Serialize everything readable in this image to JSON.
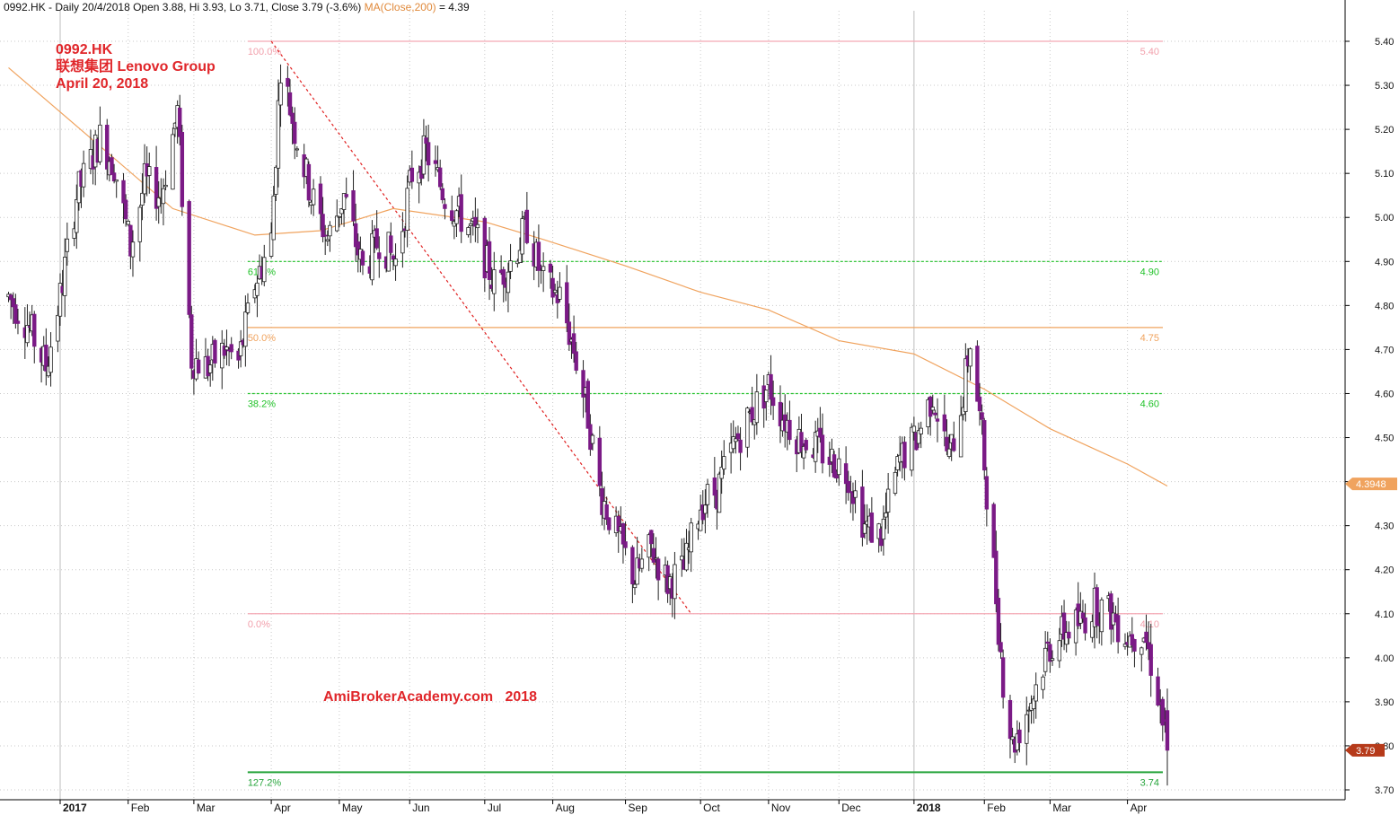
{
  "header": {
    "ohlc_text": "0992.HK - Daily 20/4/2018 Open 3.88, Hi 3.93, Lo 3.71, Close 3.79 (-3.6%)",
    "ma_label": "MA(Close,200)",
    "ma_value": " = 4.39"
  },
  "annotation": {
    "symbol": "0992.HK",
    "name": "联想集团 Lenovo Group",
    "date": "April 20, 2018"
  },
  "watermark": "AmiBrokerAcademy.com   2018",
  "colors": {
    "candle_up": "#ffffff",
    "candle_down": "#7b1a86",
    "wick": "#222222",
    "ma_line": "#f0a35e",
    "fib_pink": "#f4a9b4",
    "fib_green": "#22c22a",
    "fib_orange": "#f0a35e",
    "trend_line": "#e02020",
    "grid": "#c9c9c9",
    "ma_badge": "#f0a35e",
    "close_badge": "#b63a1a"
  },
  "chart_data": {
    "type": "candlestick",
    "symbol": "0992.HK",
    "y_range": [
      3.68,
      5.42
    ],
    "y_ticks": [
      "3.70",
      "3.80",
      "3.90",
      "4.00",
      "4.10",
      "4.20",
      "4.30",
      "4.40",
      "4.50",
      "4.60",
      "4.70",
      "4.80",
      "4.90",
      "5.00",
      "5.10",
      "5.20",
      "5.30",
      "5.40"
    ],
    "x_labels": [
      {
        "label": "2017",
        "date": "2017-01-03",
        "bold": true
      },
      {
        "label": "Feb",
        "date": "2017-02-01",
        "bold": false
      },
      {
        "label": "Mar",
        "date": "2017-03-01",
        "bold": false
      },
      {
        "label": "Apr",
        "date": "2017-04-03",
        "bold": false
      },
      {
        "label": "May",
        "date": "2017-05-02",
        "bold": false
      },
      {
        "label": "Jun",
        "date": "2017-06-01",
        "bold": false
      },
      {
        "label": "Jul",
        "date": "2017-07-03",
        "bold": false
      },
      {
        "label": "Aug",
        "date": "2017-08-01",
        "bold": false
      },
      {
        "label": "Sep",
        "date": "2017-09-01",
        "bold": false
      },
      {
        "label": "Oct",
        "date": "2017-10-03",
        "bold": false
      },
      {
        "label": "Nov",
        "date": "2017-11-01",
        "bold": false
      },
      {
        "label": "Dec",
        "date": "2017-12-01",
        "bold": false
      },
      {
        "label": "2018",
        "date": "2018-01-02",
        "bold": true
      },
      {
        "label": "Feb",
        "date": "2018-02-01",
        "bold": false
      },
      {
        "label": "Mar",
        "date": "2018-03-01",
        "bold": false
      },
      {
        "label": "Apr",
        "date": "2018-04-03",
        "bold": false
      }
    ],
    "price_path": [
      {
        "date": "2016-12-12",
        "price": 4.82
      },
      {
        "date": "2016-12-20",
        "price": 4.76
      },
      {
        "date": "2016-12-28",
        "price": 4.66
      },
      {
        "date": "2017-01-03",
        "price": 4.82
      },
      {
        "date": "2017-01-10",
        "price": 5.05
      },
      {
        "date": "2017-01-20",
        "price": 5.18
      },
      {
        "date": "2017-01-26",
        "price": 5.12
      },
      {
        "date": "2017-02-02",
        "price": 4.93
      },
      {
        "date": "2017-02-08",
        "price": 5.08
      },
      {
        "date": "2017-02-15",
        "price": 5.05
      },
      {
        "date": "2017-02-22",
        "price": 5.24
      },
      {
        "date": "2017-02-28",
        "price": 4.68
      },
      {
        "date": "2017-03-07",
        "price": 4.66
      },
      {
        "date": "2017-03-14",
        "price": 4.7
      },
      {
        "date": "2017-03-20",
        "price": 4.67
      },
      {
        "date": "2017-03-27",
        "price": 4.85
      },
      {
        "date": "2017-04-03",
        "price": 4.95
      },
      {
        "date": "2017-04-07",
        "price": 5.35
      },
      {
        "date": "2017-04-13",
        "price": 5.2
      },
      {
        "date": "2017-04-20",
        "price": 5.05
      },
      {
        "date": "2017-04-27",
        "price": 4.95
      },
      {
        "date": "2017-05-04",
        "price": 5.05
      },
      {
        "date": "2017-05-12",
        "price": 4.88
      },
      {
        "date": "2017-05-19",
        "price": 4.95
      },
      {
        "date": "2017-05-26",
        "price": 4.9
      },
      {
        "date": "2017-06-02",
        "price": 5.1
      },
      {
        "date": "2017-06-08",
        "price": 5.15
      },
      {
        "date": "2017-06-16",
        "price": 5.05
      },
      {
        "date": "2017-06-23",
        "price": 5.0
      },
      {
        "date": "2017-06-30",
        "price": 4.95
      },
      {
        "date": "2017-07-07",
        "price": 4.85
      },
      {
        "date": "2017-07-14",
        "price": 4.9
      },
      {
        "date": "2017-07-21",
        "price": 4.98
      },
      {
        "date": "2017-07-28",
        "price": 4.85
      },
      {
        "date": "2017-08-04",
        "price": 4.82
      },
      {
        "date": "2017-08-10",
        "price": 4.7
      },
      {
        "date": "2017-08-16",
        "price": 4.55
      },
      {
        "date": "2017-08-21",
        "price": 4.38
      },
      {
        "date": "2017-08-28",
        "price": 4.28
      },
      {
        "date": "2017-09-05",
        "price": 4.18
      },
      {
        "date": "2017-09-12",
        "price": 4.25
      },
      {
        "date": "2017-09-19",
        "price": 4.17
      },
      {
        "date": "2017-09-26",
        "price": 4.2
      },
      {
        "date": "2017-10-03",
        "price": 4.35
      },
      {
        "date": "2017-10-10",
        "price": 4.38
      },
      {
        "date": "2017-10-17",
        "price": 4.48
      },
      {
        "date": "2017-10-24",
        "price": 4.55
      },
      {
        "date": "2017-11-01",
        "price": 4.62
      },
      {
        "date": "2017-11-07",
        "price": 4.55
      },
      {
        "date": "2017-11-14",
        "price": 4.5
      },
      {
        "date": "2017-11-21",
        "price": 4.48
      },
      {
        "date": "2017-11-28",
        "price": 4.45
      },
      {
        "date": "2017-12-05",
        "price": 4.42
      },
      {
        "date": "2017-12-12",
        "price": 4.3
      },
      {
        "date": "2017-12-19",
        "price": 4.28
      },
      {
        "date": "2017-12-27",
        "price": 4.45
      },
      {
        "date": "2018-01-03",
        "price": 4.5
      },
      {
        "date": "2018-01-10",
        "price": 4.6
      },
      {
        "date": "2018-01-17",
        "price": 4.45
      },
      {
        "date": "2018-01-23",
        "price": 4.6
      },
      {
        "date": "2018-01-26",
        "price": 4.72
      },
      {
        "date": "2018-01-31",
        "price": 4.5
      },
      {
        "date": "2018-02-05",
        "price": 4.2
      },
      {
        "date": "2018-02-09",
        "price": 3.95
      },
      {
        "date": "2018-02-13",
        "price": 3.8
      },
      {
        "date": "2018-02-22",
        "price": 3.92
      },
      {
        "date": "2018-02-28",
        "price": 4.02
      },
      {
        "date": "2018-03-07",
        "price": 4.06
      },
      {
        "date": "2018-03-14",
        "price": 4.08
      },
      {
        "date": "2018-03-20",
        "price": 4.12
      },
      {
        "date": "2018-03-27",
        "price": 4.1
      },
      {
        "date": "2018-04-03",
        "price": 4.05
      },
      {
        "date": "2018-04-10",
        "price": 4.06
      },
      {
        "date": "2018-04-16",
        "price": 3.92
      },
      {
        "date": "2018-04-20",
        "price": 3.79
      }
    ],
    "last_bar": {
      "date": "2018-04-20",
      "open": 3.88,
      "high": 3.93,
      "low": 3.71,
      "close": 3.79
    },
    "ma200": [
      {
        "date": "2016-12-12",
        "value": 5.34
      },
      {
        "date": "2017-01-16",
        "value": 5.18
      },
      {
        "date": "2017-02-20",
        "value": 5.02
      },
      {
        "date": "2017-03-27",
        "value": 4.96
      },
      {
        "date": "2017-04-24",
        "value": 4.97
      },
      {
        "date": "2017-05-25",
        "value": 5.02
      },
      {
        "date": "2017-07-03",
        "value": 4.99
      },
      {
        "date": "2017-07-28",
        "value": 4.95
      },
      {
        "date": "2017-09-01",
        "value": 4.89
      },
      {
        "date": "2017-10-03",
        "value": 4.83
      },
      {
        "date": "2017-11-01",
        "value": 4.79
      },
      {
        "date": "2017-12-01",
        "value": 4.72
      },
      {
        "date": "2018-01-02",
        "value": 4.69
      },
      {
        "date": "2018-02-01",
        "value": 4.61
      },
      {
        "date": "2018-03-01",
        "value": 4.52
      },
      {
        "date": "2018-04-03",
        "value": 4.44
      },
      {
        "date": "2018-04-20",
        "value": 4.39
      }
    ],
    "fib_levels": [
      {
        "pct": "100.0%",
        "price": 5.4,
        "price_label": "5.40",
        "style": "pink"
      },
      {
        "pct": "61.8%",
        "price": 4.9,
        "price_label": "4.90",
        "style": "green-dash"
      },
      {
        "pct": "50.0%",
        "price": 4.75,
        "price_label": "4.75",
        "style": "orange"
      },
      {
        "pct": "38.2%",
        "price": 4.6,
        "price_label": "4.60",
        "style": "green-dash"
      },
      {
        "pct": "0.0%",
        "price": 4.1,
        "price_label": "4.10",
        "style": "pink"
      },
      {
        "pct": "127.2%",
        "price": 3.74,
        "price_label": "3.74",
        "style": "green-solid"
      }
    ],
    "fib_start_date": "2017-03-27",
    "fib_end_date": "2018-04-20",
    "trend_line": {
      "from": {
        "date": "2017-04-03",
        "price": 5.4
      },
      "to": {
        "date": "2017-09-29",
        "price": 4.1
      }
    },
    "ma_value": 4.3948,
    "ma_value_label": "4.3948",
    "close_value": 3.79,
    "close_value_label": "3.79"
  }
}
